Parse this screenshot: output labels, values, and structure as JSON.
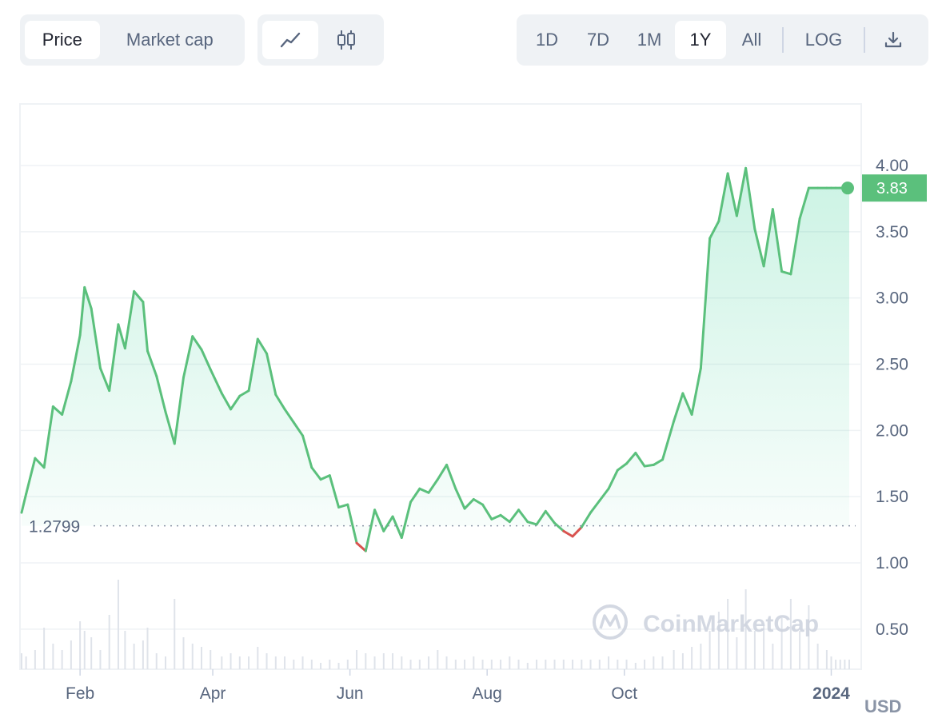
{
  "toolbar": {
    "type_tabs": [
      {
        "label": "Price",
        "active": true
      },
      {
        "label": "Market cap",
        "active": false
      }
    ],
    "chart_types": [
      {
        "icon": "line-chart-icon",
        "active": true
      },
      {
        "icon": "candlestick-chart-icon",
        "active": false
      }
    ],
    "ranges": [
      {
        "label": "1D",
        "active": false
      },
      {
        "label": "7D",
        "active": false
      },
      {
        "label": "1M",
        "active": false
      },
      {
        "label": "1Y",
        "active": true
      },
      {
        "label": "All",
        "active": false
      }
    ],
    "log_label": "LOG",
    "download_icon": "download-icon"
  },
  "watermark": "CoinMarketCap",
  "chart_data": {
    "type": "area",
    "x_ticks": [
      "Feb",
      "Apr",
      "Jun",
      "Aug",
      "Oct",
      "2024"
    ],
    "y_ticks": [
      "1.00",
      "1.50",
      "2.00",
      "2.50",
      "3.00",
      "3.50",
      "4.00"
    ],
    "ylim": [
      0.2,
      4.5
    ],
    "unit_label": "USD",
    "baseline": {
      "value": 1.28,
      "label": "1.2799"
    },
    "current": {
      "value": 3.83,
      "label": "3.83"
    },
    "x_dates": [
      "2023-01-06",
      "2023-01-08",
      "2023-01-12",
      "2023-01-16",
      "2023-01-20",
      "2023-01-24",
      "2023-01-28",
      "2023-02-01",
      "2023-02-03",
      "2023-02-06",
      "2023-02-10",
      "2023-02-14",
      "2023-02-18",
      "2023-02-21",
      "2023-02-25",
      "2023-03-01",
      "2023-03-03",
      "2023-03-07",
      "2023-03-11",
      "2023-03-15",
      "2023-03-19",
      "2023-03-23",
      "2023-03-27",
      "2023-03-31",
      "2023-04-05",
      "2023-04-09",
      "2023-04-13",
      "2023-04-17",
      "2023-04-21",
      "2023-04-25",
      "2023-04-29",
      "2023-05-03",
      "2023-05-07",
      "2023-05-11",
      "2023-05-15",
      "2023-05-19",
      "2023-05-23",
      "2023-05-27",
      "2023-05-31",
      "2023-06-04",
      "2023-06-08",
      "2023-06-12",
      "2023-06-16",
      "2023-06-20",
      "2023-06-24",
      "2023-06-28",
      "2023-07-02",
      "2023-07-06",
      "2023-07-10",
      "2023-07-14",
      "2023-07-18",
      "2023-07-22",
      "2023-07-26",
      "2023-07-30",
      "2023-08-03",
      "2023-08-07",
      "2023-08-11",
      "2023-08-15",
      "2023-08-19",
      "2023-08-23",
      "2023-08-27",
      "2023-08-31",
      "2023-09-04",
      "2023-09-08",
      "2023-09-12",
      "2023-09-16",
      "2023-09-20",
      "2023-09-24",
      "2023-09-28",
      "2023-10-02",
      "2023-10-06",
      "2023-10-10",
      "2023-10-14",
      "2023-10-18",
      "2023-10-23",
      "2023-10-27",
      "2023-10-31",
      "2023-11-04",
      "2023-11-08",
      "2023-11-12",
      "2023-11-16",
      "2023-11-20",
      "2023-11-24",
      "2023-11-28",
      "2023-12-02",
      "2023-12-06",
      "2023-12-10",
      "2023-12-14",
      "2023-12-18",
      "2023-12-22",
      "2023-12-26",
      "2023-12-30",
      "2024-01-01",
      "2024-01-03",
      "2024-01-05",
      "2024-01-07",
      "2024-01-09"
    ],
    "price": [
      1.38,
      1.52,
      1.79,
      1.72,
      2.18,
      2.12,
      2.37,
      2.72,
      3.08,
      2.92,
      2.47,
      2.3,
      2.8,
      2.62,
      3.05,
      2.97,
      2.6,
      2.41,
      2.14,
      1.9,
      2.4,
      2.71,
      2.61,
      2.46,
      2.28,
      2.16,
      2.26,
      2.3,
      2.69,
      2.58,
      2.27,
      2.16,
      2.06,
      1.96,
      1.72,
      1.63,
      1.66,
      1.42,
      1.44,
      1.15,
      1.09,
      1.4,
      1.24,
      1.35,
      1.19,
      1.46,
      1.56,
      1.53,
      1.63,
      1.74,
      1.56,
      1.41,
      1.48,
      1.44,
      1.33,
      1.36,
      1.31,
      1.4,
      1.31,
      1.29,
      1.39,
      1.3,
      1.24,
      1.2,
      1.27,
      1.38,
      1.47,
      1.56,
      1.7,
      1.75,
      1.83,
      1.73,
      1.74,
      1.78,
      2.07,
      2.28,
      2.12,
      2.47,
      3.45,
      3.58,
      3.94,
      3.62,
      3.98,
      3.52,
      3.24,
      3.67,
      3.2,
      3.18,
      3.6,
      3.83,
      3.83,
      3.83,
      3.83,
      3.83,
      3.83,
      3.83,
      3.83
    ],
    "volume": [
      0.05,
      0.04,
      0.06,
      0.13,
      0.08,
      0.06,
      0.09,
      0.15,
      0.12,
      0.1,
      0.06,
      0.17,
      0.28,
      0.12,
      0.08,
      0.09,
      0.13,
      0.05,
      0.04,
      0.22,
      0.1,
      0.08,
      0.07,
      0.06,
      0.04,
      0.05,
      0.04,
      0.04,
      0.07,
      0.05,
      0.04,
      0.04,
      0.03,
      0.04,
      0.03,
      0.02,
      0.03,
      0.02,
      0.03,
      0.06,
      0.05,
      0.04,
      0.05,
      0.05,
      0.04,
      0.03,
      0.03,
      0.04,
      0.06,
      0.04,
      0.03,
      0.03,
      0.04,
      0.03,
      0.03,
      0.03,
      0.04,
      0.03,
      0.02,
      0.03,
      0.03,
      0.03,
      0.03,
      0.03,
      0.03,
      0.03,
      0.03,
      0.04,
      0.03,
      0.03,
      0.02,
      0.03,
      0.04,
      0.04,
      0.06,
      0.05,
      0.07,
      0.08,
      0.12,
      0.18,
      0.22,
      0.1,
      0.25,
      0.12,
      0.14,
      0.08,
      0.16,
      0.22,
      0.12,
      0.2,
      0.08,
      0.06,
      0.04,
      0.03,
      0.03,
      0.03,
      0.03
    ]
  }
}
